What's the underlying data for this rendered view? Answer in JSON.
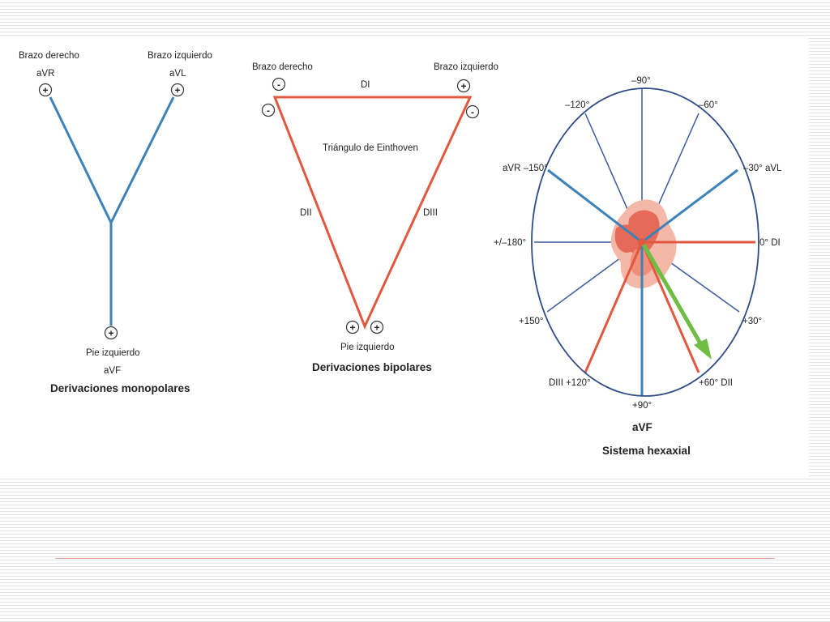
{
  "colors": {
    "blue": "#3d82b8",
    "orange": "#e2583e",
    "green": "#6fbd45",
    "ring": "#2f4c85",
    "spokes": "#3c5a99",
    "heart_outer": "#f3b8a8",
    "heart_inner": "#e66a58"
  },
  "monopolar": {
    "right_arm": "Brazo derecho",
    "avr": "aVR",
    "left_arm": "Brazo izquierdo",
    "avl": "aVL",
    "left_foot": "Pie izquierdo",
    "avf": "aVF",
    "caption": "Derivaciones monopolares"
  },
  "bipolar": {
    "right_arm": "Brazo derecho",
    "left_arm": "Brazo izquierdo",
    "triangle": "Triángulo de Einthoven",
    "di": "DI",
    "dii": "DII",
    "diii": "DIII",
    "left_foot": "Pie izquierdo",
    "caption": "Derivaciones bipolares"
  },
  "hexaxial": {
    "labels": {
      "m90": "–90°",
      "m120": "–120°",
      "m60": "–60°",
      "avr150": "aVR –150°",
      "avl30": "–30° aVL",
      "pm180": "+/–180°",
      "di0": "0° DI",
      "p150": "+150°",
      "p30": "+30°",
      "diii120": "DIII +120°",
      "dii60": "+60° DII",
      "p90": "+90°",
      "avf": "aVF"
    },
    "caption": "Sistema hexaxial"
  },
  "symbols": {
    "plus": "+",
    "minus": "-"
  }
}
